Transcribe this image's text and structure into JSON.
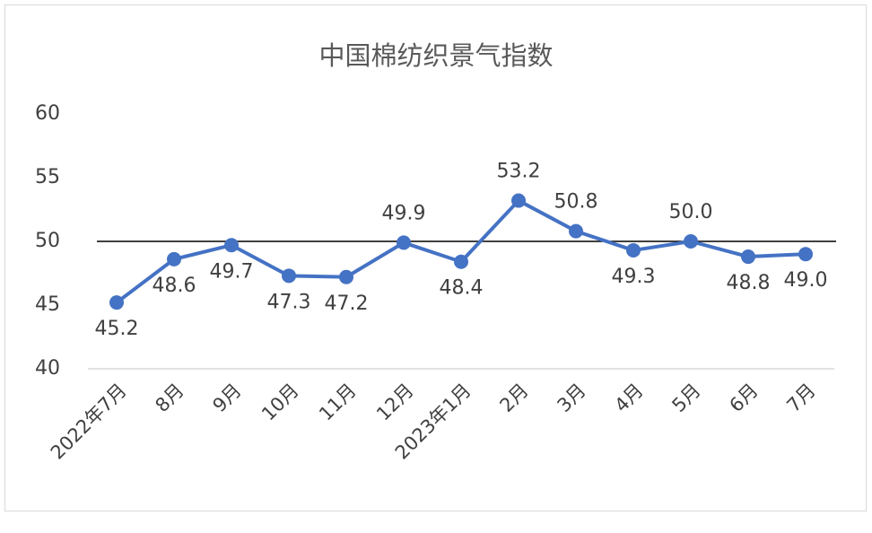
{
  "chart_data": {
    "type": "line",
    "title": "中国棉纺织景气指数",
    "categories": [
      "2022年7月",
      "8月",
      "9月",
      "10月",
      "11月",
      "12月",
      "2023年1月",
      "2月",
      "3月",
      "4月",
      "5月",
      "6月",
      "7月"
    ],
    "series": [
      {
        "name": "中国棉纺织景气指数",
        "color": "#4472c4",
        "values": [
          45.2,
          48.6,
          49.7,
          47.3,
          47.2,
          49.9,
          48.4,
          53.2,
          50.8,
          49.3,
          50.0,
          48.8,
          49.0
        ],
        "value_labels": [
          "45.2",
          "48.6",
          "49.7",
          "47.3",
          "47.2",
          "49.9",
          "48.4",
          "53.2",
          "50.8",
          "49.3",
          "50.0",
          "48.8",
          "49.0"
        ]
      }
    ],
    "ylim": [
      40,
      60
    ],
    "yticks": [
      40,
      45,
      50,
      55,
      60
    ],
    "grid": false,
    "reference_line": 50
  }
}
